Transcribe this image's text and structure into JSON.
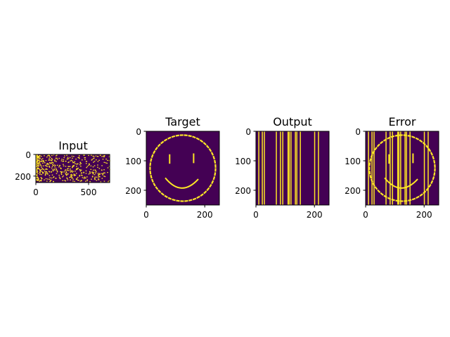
{
  "colors": {
    "background": "#440154",
    "foreground": "#fde725",
    "axis": "#000000",
    "figure_bg": "#ffffff"
  },
  "chart_data": [
    {
      "type": "heatmap",
      "title": "Input",
      "x_ticks": [
        0,
        500
      ],
      "y_ticks": [
        0,
        200
      ],
      "xlim": [
        0,
        700
      ],
      "ylim": [
        260,
        0
      ],
      "pattern": "sparse random spikes, denser at low x"
    },
    {
      "type": "heatmap",
      "title": "Target",
      "x_ticks": [
        0,
        200
      ],
      "y_ticks": [
        0,
        100,
        200
      ],
      "xlim": [
        0,
        250
      ],
      "ylim": [
        250,
        0
      ],
      "pattern": "smiley face outline"
    },
    {
      "type": "heatmap",
      "title": "Output",
      "x_ticks": [
        0,
        200
      ],
      "y_ticks": [
        0,
        100,
        200
      ],
      "xlim": [
        0,
        250
      ],
      "ylim": [
        250,
        0
      ],
      "pattern": "vertical stripes",
      "stripe_columns": [
        8,
        20,
        27,
        68,
        82,
        90,
        108,
        112,
        118,
        133,
        138,
        150,
        199,
        212
      ]
    },
    {
      "type": "heatmap",
      "title": "Error",
      "x_ticks": [
        0,
        200
      ],
      "y_ticks": [
        0,
        100,
        200
      ],
      "xlim": [
        0,
        250
      ],
      "ylim": [
        250,
        0
      ],
      "pattern": "smiley face outline XOR vertical stripes"
    }
  ]
}
